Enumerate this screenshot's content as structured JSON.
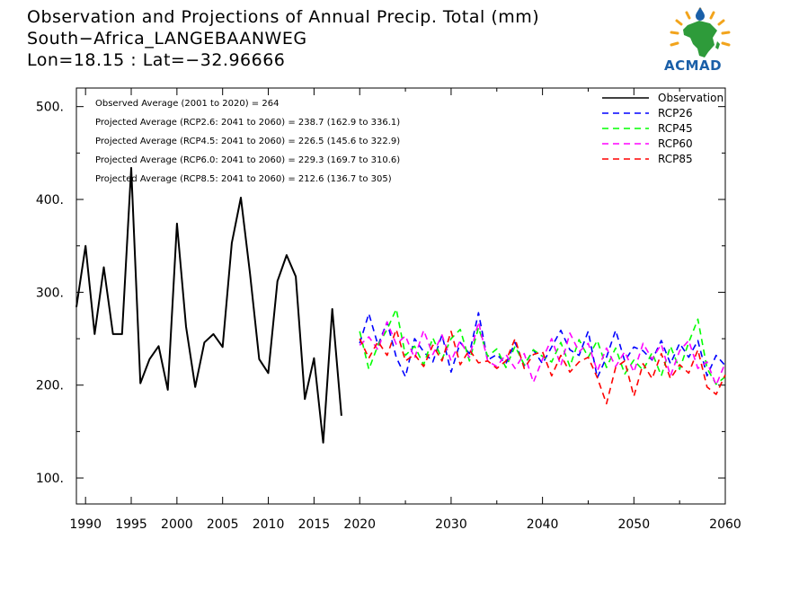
{
  "header": {
    "title": "Observation and Projections of Annual Precip. Total (mm)",
    "station": "South−Africa_LANGEBAANWEG",
    "coords": "Lon=18.15 : Lat=−32.96666"
  },
  "logo": {
    "text": "ACMAD"
  },
  "chart_data": {
    "type": "line",
    "title": "Observation and Projections of Annual Precip. Total (mm)",
    "xlim": [
      1989,
      2060
    ],
    "ylim": [
      72,
      520
    ],
    "grid": false,
    "legend_position": "top-right",
    "x_ticks": [
      {
        "value": 1990,
        "label": "1990"
      },
      {
        "value": 1995,
        "label": "1995"
      },
      {
        "value": 2000,
        "label": "2000"
      },
      {
        "value": 2005,
        "label": "2005"
      },
      {
        "value": 2010,
        "label": "2010"
      },
      {
        "value": 2015,
        "label": "2015"
      },
      {
        "value": 2020,
        "label": "2020"
      },
      {
        "value": 2030,
        "label": "2030"
      },
      {
        "value": 2040,
        "label": "2040"
      },
      {
        "value": 2050,
        "label": "2050"
      },
      {
        "value": 2060,
        "label": "2060"
      }
    ],
    "y_ticks": [
      {
        "value": 100,
        "label": "100."
      },
      {
        "value": 200,
        "label": "200."
      },
      {
        "value": 300,
        "label": "300."
      },
      {
        "value": 400,
        "label": "400."
      },
      {
        "value": 500,
        "label": "500."
      }
    ],
    "annotations": [
      "Observed Average (2001 to 2020) = 264",
      "Projected Average (RCP2.6: 2041 to 2060) = 238.7 (162.9 to 336.1)",
      "Projected Average (RCP4.5: 2041 to 2060) = 226.5 (145.6 to 322.9)",
      "Projected Average (RCP6.0: 2041 to 2060) = 229.3 (169.7 to 310.6)",
      "Projected Average (RCP8.5: 2041 to 2060) = 212.6 (136.7 to 305)"
    ],
    "series": [
      {
        "name": "Observation",
        "color": "#000000",
        "dash": "solid",
        "x": [
          1989,
          1990,
          1991,
          1992,
          1993,
          1994,
          1995,
          1996,
          1997,
          1998,
          1999,
          2000,
          2001,
          2002,
          2003,
          2004,
          2005,
          2006,
          2007,
          2008,
          2009,
          2010,
          2011,
          2012,
          2013,
          2014,
          2015,
          2016,
          2017,
          2018,
          2019
        ],
        "y": [
          284,
          350,
          255,
          327,
          255,
          255,
          434,
          202,
          228,
          242,
          195,
          374,
          263,
          198,
          246,
          255,
          241,
          353,
          402,
          320,
          228,
          213,
          312,
          340,
          317,
          185,
          229,
          138,
          282,
          167,
          null
        ]
      },
      {
        "name": "RCP26",
        "color": "#0000ff",
        "dash": "dashed",
        "x": [
          2020,
          2021,
          2022,
          2023,
          2024,
          2025,
          2026,
          2027,
          2028,
          2029,
          2030,
          2031,
          2032,
          2033,
          2034,
          2035,
          2036,
          2037,
          2038,
          2039,
          2040,
          2041,
          2042,
          2043,
          2044,
          2045,
          2046,
          2047,
          2048,
          2049,
          2050,
          2051,
          2052,
          2053,
          2054,
          2055,
          2056,
          2057,
          2058,
          2059,
          2060
        ],
        "y": [
          245,
          277,
          243,
          268,
          230,
          209,
          250,
          236,
          225,
          254,
          214,
          246,
          234,
          278,
          227,
          233,
          223,
          246,
          221,
          238,
          223,
          241,
          259,
          238,
          232,
          258,
          208,
          230,
          259,
          226,
          241,
          237,
          227,
          248,
          223,
          245,
          230,
          248,
          210,
          232,
          221
        ]
      },
      {
        "name": "RCP45",
        "color": "#00ff00",
        "dash": "dashed",
        "x": [
          2020,
          2021,
          2022,
          2023,
          2024,
          2025,
          2026,
          2027,
          2028,
          2029,
          2030,
          2031,
          2032,
          2033,
          2034,
          2035,
          2036,
          2037,
          2038,
          2039,
          2040,
          2041,
          2042,
          2043,
          2044,
          2045,
          2046,
          2047,
          2048,
          2049,
          2050,
          2051,
          2052,
          2053,
          2054,
          2055,
          2056,
          2057,
          2058,
          2059,
          2060
        ],
        "y": [
          258,
          217,
          243,
          260,
          282,
          232,
          242,
          222,
          251,
          228,
          250,
          260,
          226,
          262,
          231,
          239,
          219,
          242,
          222,
          238,
          231,
          225,
          246,
          220,
          249,
          230,
          248,
          219,
          240,
          212,
          227,
          216,
          235,
          210,
          242,
          217,
          246,
          271,
          218,
          201,
          209
        ]
      },
      {
        "name": "RCP60",
        "color": "#ff00ff",
        "dash": "dashed",
        "x": [
          2020,
          2021,
          2022,
          2023,
          2024,
          2025,
          2026,
          2027,
          2028,
          2029,
          2030,
          2031,
          2032,
          2033,
          2034,
          2035,
          2036,
          2037,
          2038,
          2039,
          2040,
          2041,
          2042,
          2043,
          2044,
          2045,
          2046,
          2047,
          2048,
          2049,
          2050,
          2051,
          2052,
          2053,
          2054,
          2055,
          2056,
          2057,
          2058,
          2059,
          2060
        ],
        "y": [
          243,
          252,
          238,
          268,
          244,
          253,
          229,
          259,
          233,
          254,
          226,
          248,
          230,
          268,
          226,
          220,
          233,
          218,
          234,
          203,
          228,
          250,
          221,
          256,
          236,
          245,
          215,
          240,
          220,
          236,
          214,
          245,
          228,
          244,
          210,
          237,
          248,
          218,
          225,
          200,
          224
        ]
      },
      {
        "name": "RCP85",
        "color": "#ff0000",
        "dash": "dashed",
        "x": [
          2020,
          2021,
          2022,
          2023,
          2024,
          2025,
          2026,
          2027,
          2028,
          2029,
          2030,
          2031,
          2032,
          2033,
          2034,
          2035,
          2036,
          2037,
          2038,
          2039,
          2040,
          2041,
          2042,
          2043,
          2044,
          2045,
          2046,
          2047,
          2048,
          2049,
          2050,
          2051,
          2052,
          2053,
          2054,
          2055,
          2056,
          2057,
          2058,
          2059,
          2060
        ],
        "y": [
          250,
          229,
          247,
          232,
          260,
          226,
          233,
          220,
          243,
          226,
          258,
          222,
          238,
          224,
          226,
          218,
          226,
          250,
          218,
          233,
          236,
          210,
          232,
          214,
          225,
          230,
          208,
          180,
          219,
          226,
          188,
          223,
          207,
          234,
          207,
          222,
          213,
          238,
          198,
          190,
          211
        ]
      }
    ]
  }
}
